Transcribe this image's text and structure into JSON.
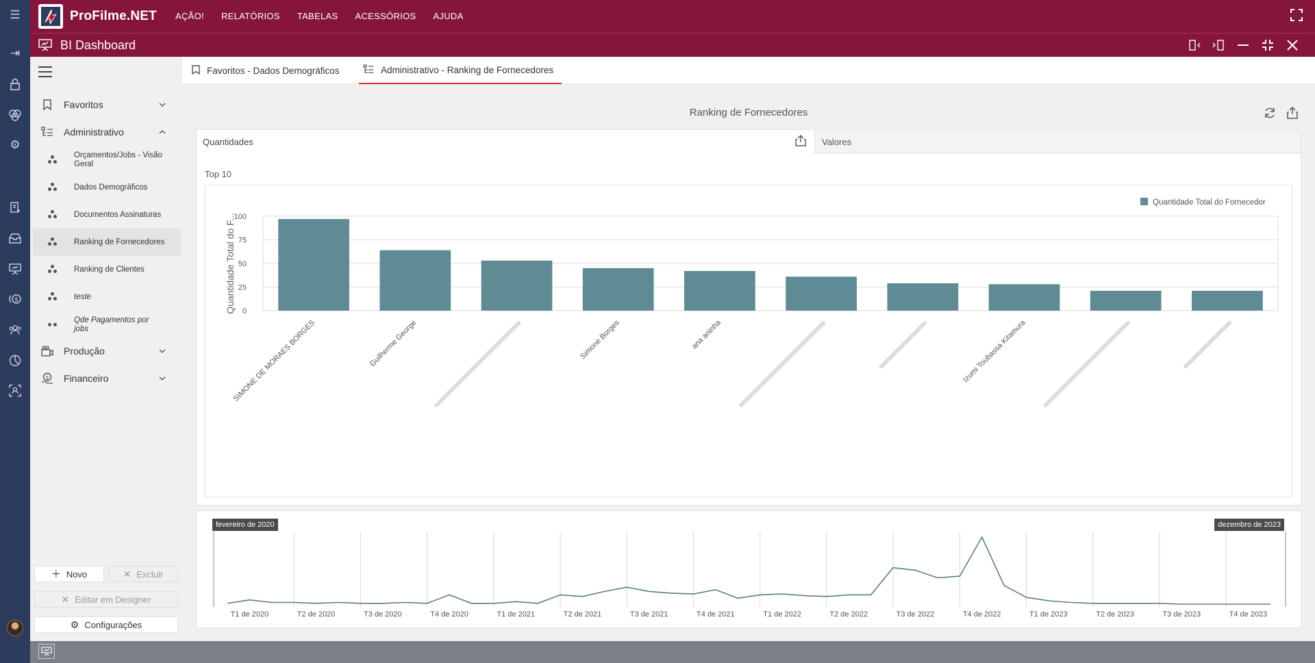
{
  "app": {
    "brand": "ProFilme.NET",
    "menu": [
      "AÇÃO!",
      "RELATÓRIOS",
      "TABELAS",
      "ACESSÓRIOS",
      "AJUDA"
    ],
    "window_title": "BI Dashboard",
    "accent_color": "#85153c",
    "rail_color": "#2d3b5c"
  },
  "rail_icons": [
    "menu-icon",
    "login-icon",
    "lock-icon",
    "circles-icon",
    "settings-icon",
    "document-plus-icon",
    "inbox-icon",
    "presentation-icon",
    "money-icon",
    "users-icon",
    "pie-chart-icon",
    "user-scan-icon"
  ],
  "sidebar": {
    "groups": [
      {
        "label": "Favoritos",
        "icon": "bookmark-icon",
        "expanded": false
      },
      {
        "label": "Administrativo",
        "icon": "hierarchy-icon",
        "expanded": true
      },
      {
        "label": "Produção",
        "icon": "camera-icon",
        "expanded": false
      },
      {
        "label": "Financeiro",
        "icon": "money-icon",
        "expanded": false
      }
    ],
    "items": [
      {
        "label": "Orçamentos/Jobs - Visão Geral"
      },
      {
        "label": "Dados Demográficos"
      },
      {
        "label": "Documentos Assinaturas"
      },
      {
        "label": "Ranking de Fornecedores"
      },
      {
        "label": "Ranking de Clientes"
      },
      {
        "label": "teste"
      },
      {
        "label": "Qde Pagamentos por jobs"
      }
    ],
    "buttons": {
      "novo": "Novo",
      "excluir": "Excluir",
      "editar": "Editar em Designer",
      "config": "Configurações"
    }
  },
  "tabs": [
    {
      "label": "Favoritos - Dados Demográficos",
      "icon": "bookmark-icon",
      "active": false
    },
    {
      "label": "Administrativo - Ranking de Fornecedores",
      "icon": "hierarchy-icon",
      "active": true
    }
  ],
  "dashboard": {
    "title": "Ranking de Fornecedores",
    "panel_tabs": [
      "Quantidades",
      "Valores"
    ],
    "subtitle": "Top 10"
  },
  "chart_data": [
    {
      "type": "bar",
      "title": "",
      "ylabel": "Quantidade Total do F...",
      "ylim": [
        0,
        100
      ],
      "yticks": [
        0,
        25,
        50,
        75,
        100
      ],
      "legend": "Quantidade Total do Fornecedor",
      "legend_position": "top-right",
      "grid": true,
      "color": "#5f8b94",
      "categories": [
        "SIMONE DE MORAES BORGES",
        "Guilherme George",
        "",
        "Simone Borges",
        "ana aninha",
        "",
        "",
        "Izumi Toubassa Kitamura",
        "",
        ""
      ],
      "blurred": [
        false,
        false,
        true,
        false,
        false,
        true,
        true,
        false,
        true,
        true
      ],
      "values": [
        97,
        64,
        53,
        45,
        42,
        36,
        29,
        28,
        21,
        21
      ]
    },
    {
      "type": "line",
      "title": "",
      "range_start_label": "fevereiro de 2020",
      "range_end_label": "dezembro de 2023",
      "xticks": [
        "T1 de 2020",
        "T2 de 2020",
        "T3 de 2020",
        "T4 de 2020",
        "T1 de 2021",
        "T2 de 2021",
        "T3 de 2021",
        "T4 de 2021",
        "T1 de 2022",
        "T2 de 2022",
        "T3 de 2022",
        "T4 de 2022",
        "T1 de 2023",
        "T2 de 2023",
        "T3 de 2023",
        "T4 de 2023"
      ],
      "color": "#5a7d8a",
      "x": [
        "2020-01",
        "2020-02",
        "2020-03",
        "2020-04",
        "2020-05",
        "2020-06",
        "2020-07",
        "2020-08",
        "2020-09",
        "2020-10",
        "2020-11",
        "2020-12",
        "2021-01",
        "2021-02",
        "2021-03",
        "2021-04",
        "2021-05",
        "2021-06",
        "2021-07",
        "2021-08",
        "2021-09",
        "2021-10",
        "2021-11",
        "2021-12",
        "2022-01",
        "2022-02",
        "2022-03",
        "2022-04",
        "2022-05",
        "2022-06",
        "2022-07",
        "2022-08",
        "2022-09",
        "2022-10",
        "2022-11",
        "2022-12",
        "2023-01",
        "2023-02",
        "2023-03",
        "2023-04",
        "2023-05",
        "2023-06",
        "2023-07",
        "2023-08",
        "2023-09",
        "2023-10",
        "2023-11",
        "2023-12"
      ],
      "values": [
        1,
        5,
        2,
        2,
        1,
        2,
        1,
        1,
        2,
        1,
        11,
        1,
        1,
        3,
        1,
        11,
        9,
        15,
        20,
        15,
        13,
        12,
        17,
        7,
        11,
        12,
        10,
        9,
        11,
        11,
        43,
        40,
        31,
        33,
        79,
        22,
        8,
        4,
        2,
        1,
        1,
        1,
        1,
        0,
        0,
        0,
        0,
        0
      ]
    }
  ]
}
